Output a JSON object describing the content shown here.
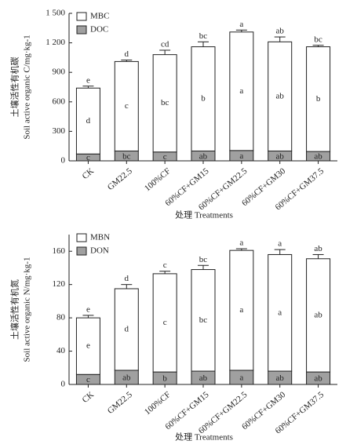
{
  "chart_data": [
    {
      "type": "bar",
      "stacked": true,
      "ylabel": [
        "土壤活性有机碳",
        "Soil active organic C/mg·kg-1"
      ],
      "xlabel": "处理 Treatments",
      "categories": [
        "CK",
        "GM22.5",
        "100%CF",
        "60%CF+GM15",
        "60%CF+GM22.5",
        "60%CF+GM30",
        "60%CF+GM37.5"
      ],
      "series": [
        {
          "name": "MBC",
          "color": "#ffffff",
          "values": [
            670,
            910,
            990,
            1060,
            1205,
            1110,
            1065
          ],
          "errors": [
            20,
            15,
            45,
            50,
            20,
            50,
            15
          ],
          "letters": [
            "d",
            "c",
            "bc",
            "b",
            "a",
            "ab",
            "b"
          ]
        },
        {
          "name": "DOC",
          "color": "#a0a0a0",
          "values": [
            70,
            100,
            90,
            100,
            105,
            100,
            95
          ],
          "letters": [
            "c",
            "bc",
            "c",
            "ab",
            "a",
            "ab",
            "ab"
          ]
        }
      ],
      "top_letters": [
        "e",
        "d",
        "cd",
        "bc",
        "a",
        "ab",
        "bc"
      ],
      "ylim": [
        0,
        1500
      ],
      "yticks": [
        0,
        300,
        600,
        900,
        {
          "value": 1200,
          "label": "1 200"
        },
        {
          "value": 1500,
          "label": "1 500"
        }
      ],
      "legend": "upper left"
    },
    {
      "type": "bar",
      "stacked": true,
      "ylabel": [
        "土壤活性有机氮",
        "Soil active organic N/mg·kg-1"
      ],
      "xlabel": "处理 Treatments",
      "categories": [
        "CK",
        "GM22.5",
        "100%CF",
        "60%CF+GM15",
        "60%CF+GM22.5",
        "60%CF+GM30",
        "60%CF+GM37.5"
      ],
      "series": [
        {
          "name": "MBN",
          "color": "#ffffff",
          "values": [
            68,
            98,
            118,
            122,
            144,
            140,
            136
          ],
          "errors": [
            3,
            5,
            3,
            5,
            2,
            6,
            5
          ],
          "letters": [
            "e",
            "d",
            "c",
            "bc",
            "a",
            "a",
            "ab"
          ]
        },
        {
          "name": "DON",
          "color": "#a0a0a0",
          "values": [
            12,
            17,
            15,
            16,
            17,
            16,
            15
          ],
          "letters": [
            "c",
            "ab",
            "b",
            "ab",
            "a",
            "ab",
            "ab"
          ]
        }
      ],
      "top_letters": [
        "e",
        "d",
        "c",
        "bc",
        "a",
        "a",
        "ab"
      ],
      "ylim": [
        0,
        180
      ],
      "yticks": [
        0,
        40,
        80,
        120,
        160
      ],
      "legend": "upper left"
    }
  ]
}
